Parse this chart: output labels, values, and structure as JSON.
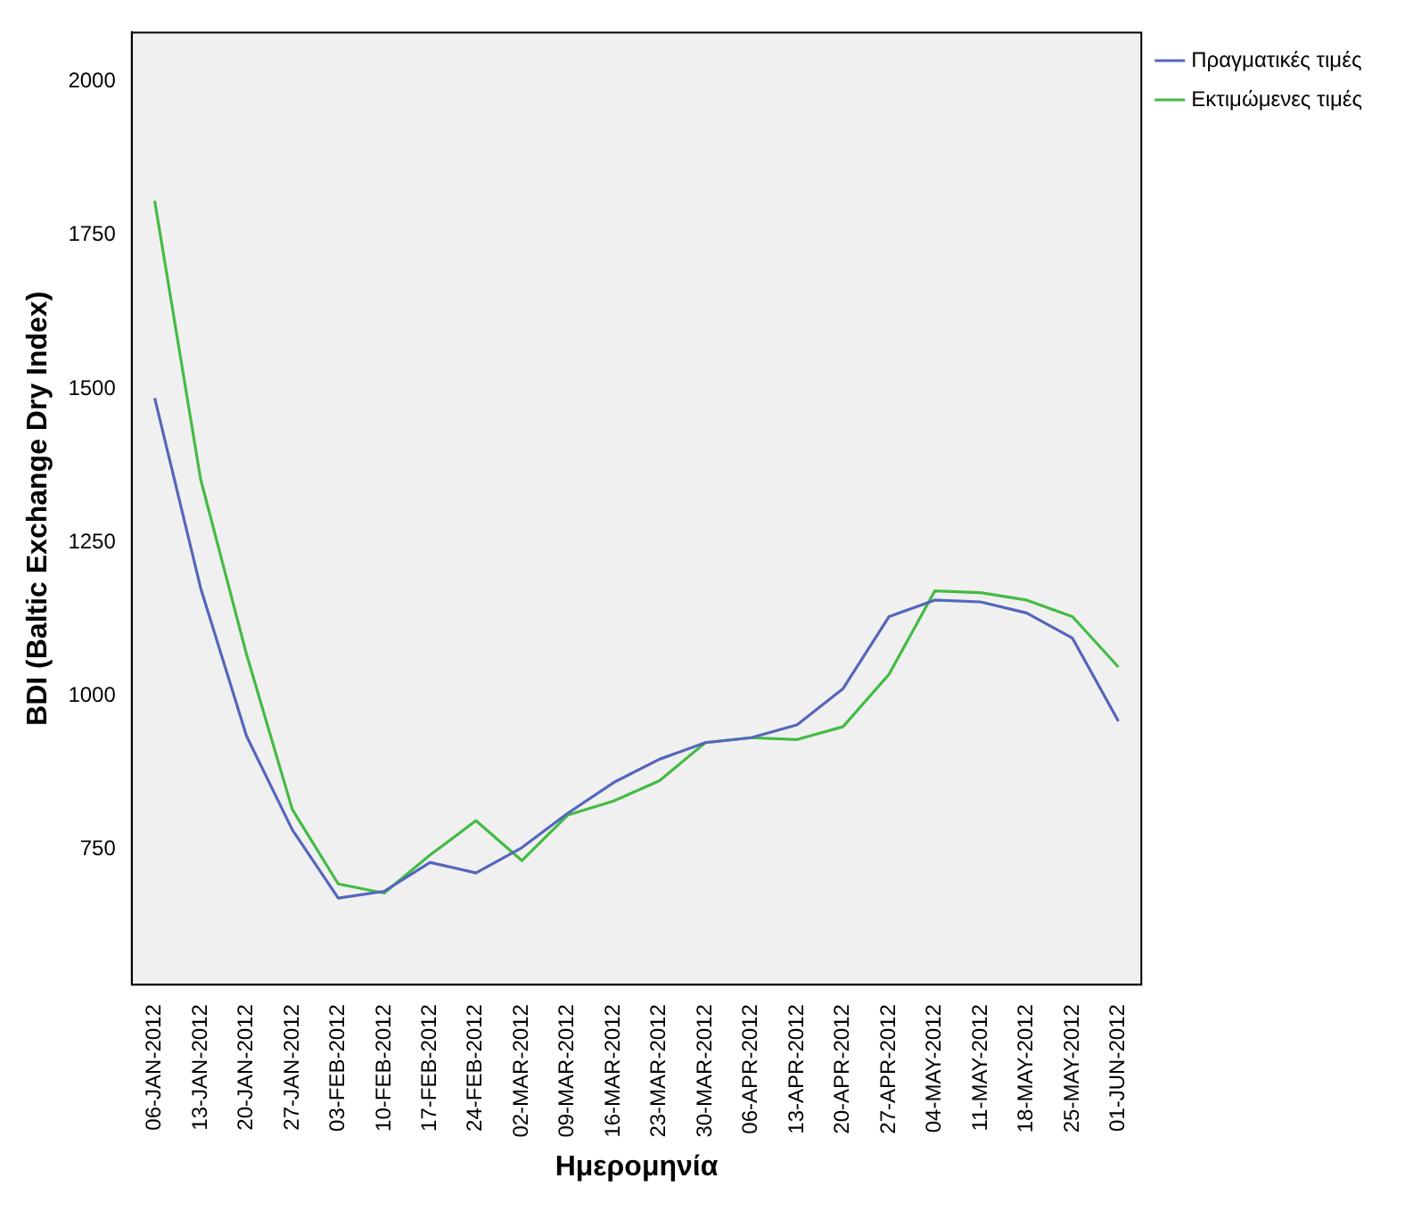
{
  "chart_data": {
    "type": "line",
    "xlabel": "Ημερομηνία",
    "ylabel": "BDI (Baltic Exchange Dry Index)",
    "categories": [
      "06-JAN-2012",
      "13-JAN-2012",
      "20-JAN-2012",
      "27-JAN-2012",
      "03-FEB-2012",
      "10-FEB-2012",
      "17-FEB-2012",
      "24-FEB-2012",
      "02-MAR-2012",
      "09-MAR-2012",
      "16-MAR-2012",
      "23-MAR-2012",
      "30-MAR-2012",
      "06-APR-2012",
      "13-APR-2012",
      "20-APR-2012",
      "27-APR-2012",
      "04-MAY-2012",
      "11-MAY-2012",
      "18-MAY-2012",
      "25-MAY-2012",
      "01-JUN-2012"
    ],
    "series": [
      {
        "name": "Πραγματικές τιμές",
        "color": "#5566bb",
        "values": [
          1485,
          1176,
          935,
          782,
          671,
          682,
          729,
          712,
          753,
          809,
          859,
          897,
          924,
          932,
          953,
          1012,
          1129,
          1156,
          1153,
          1135,
          1094,
          959
        ]
      },
      {
        "name": "Εκτιμώμενες τιμές",
        "color": "#44bb44",
        "values": [
          1806,
          1353,
          1068,
          815,
          694,
          679,
          741,
          797,
          732,
          806,
          829,
          862,
          924,
          932,
          929,
          950,
          1035,
          1171,
          1168,
          1156,
          1129,
          1047
        ]
      }
    ],
    "ylim": [
      530,
      2080
    ],
    "yticks": [
      750,
      1000,
      1250,
      1500,
      1750,
      2000
    ],
    "grid": false,
    "legend": "top right",
    "marker": "none",
    "line_style": "solid"
  }
}
